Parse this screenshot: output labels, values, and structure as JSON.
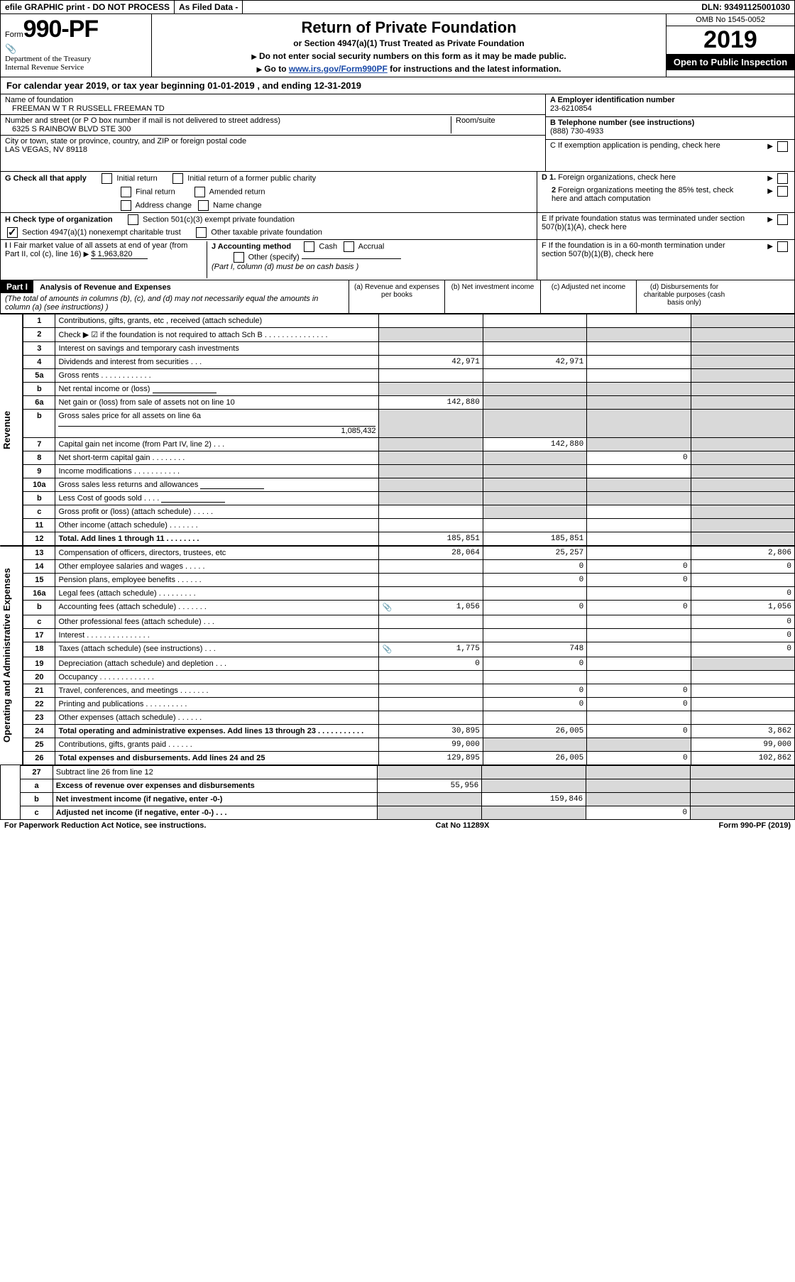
{
  "topbar": {
    "efile": "efile GRAPHIC print - DO NOT PROCESS",
    "asfiled": "As Filed Data -",
    "dln_label": "DLN:",
    "dln": "93491125001030"
  },
  "header": {
    "form_label": "Form",
    "form_no": "990-PF",
    "dept": "Department of the Treasury",
    "irs": "Internal Revenue Service",
    "title": "Return of Private Foundation",
    "subtitle": "or Section 4947(a)(1) Trust Treated as Private Foundation",
    "instr1": "Do not enter social security numbers on this form as it may be made public.",
    "instr2_prefix": "Go to ",
    "instr2_link": "www.irs.gov/Form990PF",
    "instr2_suffix": " for instructions and the latest information.",
    "omb": "OMB No 1545-0052",
    "year": "2019",
    "open": "Open to Public Inspection"
  },
  "cal": "For calendar year 2019, or tax year beginning 01-01-2019              , and ending 12-31-2019",
  "left": {
    "name_lbl": "Name of foundation",
    "name": "FREEMAN W T R RUSSELL FREEMAN TD",
    "addr_lbl": "Number and street (or P O  box number if mail is not delivered to street address)",
    "room_lbl": "Room/suite",
    "addr": "6325 S RAINBOW BLVD STE 300",
    "city_lbl": "City or town, state or province, country, and ZIP or foreign postal code",
    "city": "LAS VEGAS, NV  89118",
    "g_label": "G Check all that apply",
    "g_opts": [
      "Initial return",
      "Initial return of a former public charity",
      "Final return",
      "Amended return",
      "Address change",
      "Name change"
    ],
    "h_label": "H Check type of organization",
    "h_opts": [
      "Section 501(c)(3) exempt private foundation",
      "Section 4947(a)(1) nonexempt charitable trust",
      "Other taxable private foundation"
    ],
    "i_label": "I Fair market value of all assets at end of year (from Part II, col  (c), line 16) ",
    "i_value": "$  1,963,820",
    "j_label": "J Accounting method",
    "j_opts": [
      "Cash",
      "Accrual",
      "Other (specify)"
    ],
    "j_note": "(Part I, column (d) must be on cash basis )"
  },
  "right": {
    "a_lbl": "A Employer identification number",
    "a_val": "23-6210854",
    "b_lbl": "B Telephone number (see instructions)",
    "b_val": "(888) 730-4933",
    "c_lbl": "C If exemption application is pending, check here",
    "d1": "D 1. Foreign organizations, check here",
    "d2": "2  Foreign organizations meeting the 85% test, check here and attach computation",
    "e": "E  If private foundation status was terminated under section 507(b)(1)(A), check here",
    "f": "F  If the foundation is in a 60-month termination under section 507(b)(1)(B), check here"
  },
  "part1": {
    "label": "Part I",
    "title": "Analysis of Revenue and Expenses",
    "title_note": "(The total of amounts in columns (b), (c), and (d) may not necessarily equal the amounts in column (a) (see instructions) )",
    "cols": {
      "a": "(a)   Revenue and expenses per books",
      "b": "(b)   Net investment income",
      "c": "(c)   Adjusted net income",
      "d": "(d)   Disbursements for charitable purposes (cash basis only)"
    }
  },
  "rev_label": "Revenue",
  "exp_label": "Operating and Administrative Expenses",
  "rows": [
    {
      "n": "1",
      "t": "Contributions, gifts, grants, etc , received (attach schedule)",
      "a": "",
      "b": "",
      "c": "",
      "d": "",
      "shade_d": true
    },
    {
      "n": "2",
      "t": "Check ▶ ☑ if the foundation is not required to attach Sch  B        .  .  .  .  .  .  .  .  .  .  .  .  .  .  .",
      "a": "",
      "b": "",
      "c": "",
      "d": "",
      "shade_a": true,
      "shade_b": true,
      "shade_c": true,
      "shade_d": true
    },
    {
      "n": "3",
      "t": "Interest on savings and temporary cash investments",
      "a": "",
      "b": "",
      "c": "",
      "d": "",
      "shade_d": true
    },
    {
      "n": "4",
      "t": "Dividends and interest from securities     .   .   .",
      "a": "42,971",
      "b": "42,971",
      "c": "",
      "d": "",
      "shade_d": true
    },
    {
      "n": "5a",
      "t": "Gross rents      .   .   .   .   .   .   .   .   .   .   .   .",
      "a": "",
      "b": "",
      "c": "",
      "d": "",
      "shade_d": true
    },
    {
      "n": "b",
      "t": "Net rental income or (loss)",
      "a": "",
      "b": "",
      "c": "",
      "d": "",
      "shade_a": true,
      "shade_b": true,
      "shade_c": true,
      "shade_d": true,
      "inline_blank": true
    },
    {
      "n": "6a",
      "t": "Net gain or (loss) from sale of assets not on line 10",
      "a": "142,880",
      "b": "",
      "c": "",
      "d": "",
      "shade_b": true,
      "shade_c": true,
      "shade_d": true
    },
    {
      "n": "b",
      "t": "Gross sales price for all assets on line 6a",
      "a": "",
      "b": "",
      "c": "",
      "d": "",
      "shade_a": true,
      "shade_b": true,
      "shade_c": true,
      "shade_d": true,
      "trail": "1,085,432"
    },
    {
      "n": "7",
      "t": "Capital gain net income (from Part IV, line 2)    .   .   .",
      "a": "",
      "b": "142,880",
      "c": "",
      "d": "",
      "shade_a": true,
      "shade_c": true,
      "shade_d": true
    },
    {
      "n": "8",
      "t": "Net short-term capital gain   .   .   .   .   .   .   .   .",
      "a": "",
      "b": "",
      "c": "0",
      "d": "",
      "shade_a": true,
      "shade_b": true,
      "shade_d": true
    },
    {
      "n": "9",
      "t": "Income modifications  .   .   .   .   .   .   .   .   .   .   .",
      "a": "",
      "b": "",
      "c": "",
      "d": "",
      "shade_a": true,
      "shade_b": true,
      "shade_d": true
    },
    {
      "n": "10a",
      "t": "Gross sales less returns and allowances",
      "a": "",
      "b": "",
      "c": "",
      "d": "",
      "shade_a": true,
      "shade_b": true,
      "shade_c": true,
      "shade_d": true,
      "inline_blank": true
    },
    {
      "n": "b",
      "t": "Less  Cost of goods sold     .   .   .   .",
      "a": "",
      "b": "",
      "c": "",
      "d": "",
      "shade_a": true,
      "shade_b": true,
      "shade_c": true,
      "shade_d": true,
      "inline_blank": true
    },
    {
      "n": "c",
      "t": "Gross profit or (loss) (attach schedule)    .   .   .   .   .",
      "a": "",
      "b": "",
      "c": "",
      "d": "",
      "shade_b": true,
      "shade_d": true
    },
    {
      "n": "11",
      "t": "Other income (attach schedule)     .   .   .   .   .   .   .",
      "a": "",
      "b": "",
      "c": "",
      "d": "",
      "shade_d": true
    },
    {
      "n": "12",
      "t": "Total. Add lines 1 through 11    .   .   .   .   .   .   .   .",
      "a": "185,851",
      "b": "185,851",
      "c": "",
      "d": "",
      "bold": true,
      "shade_d": true
    }
  ],
  "exp_rows": [
    {
      "n": "13",
      "t": "Compensation of officers, directors, trustees, etc",
      "a": "28,064",
      "b": "25,257",
      "c": "",
      "d": "2,806"
    },
    {
      "n": "14",
      "t": "Other employee salaries and wages     .   .   .   .   .",
      "a": "",
      "b": "0",
      "c": "0",
      "d": "0"
    },
    {
      "n": "15",
      "t": "Pension plans, employee benefits    .   .   .   .   .   .",
      "a": "",
      "b": "0",
      "c": "0",
      "d": ""
    },
    {
      "n": "16a",
      "t": "Legal fees (attach schedule)  .   .   .   .   .   .   .   .   .",
      "a": "",
      "b": "",
      "c": "",
      "d": "0"
    },
    {
      "n": "b",
      "t": "Accounting fees (attach schedule)  .   .   .   .   .   .   .",
      "a": "1,056",
      "b": "0",
      "c": "0",
      "d": "1,056",
      "icon": true
    },
    {
      "n": "c",
      "t": "Other professional fees (attach schedule)    .   .   .",
      "a": "",
      "b": "",
      "c": "",
      "d": "0"
    },
    {
      "n": "17",
      "t": "Interest   .   .   .   .   .   .   .   .   .   .   .   .   .   .   .",
      "a": "",
      "b": "",
      "c": "",
      "d": "0"
    },
    {
      "n": "18",
      "t": "Taxes (attach schedule) (see instructions)    .   .   .",
      "a": "1,775",
      "b": "748",
      "c": "",
      "d": "0",
      "icon": true
    },
    {
      "n": "19",
      "t": "Depreciation (attach schedule) and depletion    .   .   .",
      "a": "0",
      "b": "0",
      "c": "",
      "d": "",
      "shade_d": true
    },
    {
      "n": "20",
      "t": "Occupancy    .   .   .   .   .   .   .   .   .   .   .   .   .",
      "a": "",
      "b": "",
      "c": "",
      "d": ""
    },
    {
      "n": "21",
      "t": "Travel, conferences, and meetings  .   .   .   .   .   .   .",
      "a": "",
      "b": "0",
      "c": "0",
      "d": ""
    },
    {
      "n": "22",
      "t": "Printing and publications  .   .   .   .   .   .   .   .   .   .",
      "a": "",
      "b": "0",
      "c": "0",
      "d": ""
    },
    {
      "n": "23",
      "t": "Other expenses (attach schedule)   .   .   .   .   .   .",
      "a": "",
      "b": "",
      "c": "",
      "d": ""
    },
    {
      "n": "24",
      "t": "Total operating and administrative expenses. Add lines 13 through 23    .   .   .   .   .   .   .   .   .   .   .",
      "a": "30,895",
      "b": "26,005",
      "c": "0",
      "d": "3,862",
      "bold": true
    },
    {
      "n": "25",
      "t": "Contributions, gifts, grants paid     .   .   .   .   .   .",
      "a": "99,000",
      "b": "",
      "c": "",
      "d": "99,000",
      "shade_b": true,
      "shade_c": true
    },
    {
      "n": "26",
      "t": "Total expenses and disbursements. Add lines 24 and 25",
      "a": "129,895",
      "b": "26,005",
      "c": "0",
      "d": "102,862",
      "bold": true
    }
  ],
  "tail_rows": [
    {
      "n": "27",
      "t": "Subtract line 26 from line 12",
      "a": "",
      "b": "",
      "c": "",
      "d": "",
      "shade_a": true,
      "shade_b": true,
      "shade_c": true,
      "shade_d": true
    },
    {
      "n": "a",
      "t": "Excess of revenue over expenses and disbursements",
      "a": "55,956",
      "b": "",
      "c": "",
      "d": "",
      "bold": true,
      "shade_b": true,
      "shade_c": true,
      "shade_d": true
    },
    {
      "n": "b",
      "t": "Net investment income (if negative, enter -0-)",
      "a": "",
      "b": "159,846",
      "c": "",
      "d": "",
      "bold": true,
      "shade_a": true,
      "shade_c": true,
      "shade_d": true
    },
    {
      "n": "c",
      "t": "Adjusted net income (if negative, enter -0-)   .   .   .",
      "a": "",
      "b": "",
      "c": "0",
      "d": "",
      "bold": true,
      "shade_a": true,
      "shade_b": true,
      "shade_d": true
    }
  ],
  "footer": {
    "left": "For Paperwork Reduction Act Notice, see instructions.",
    "mid": "Cat  No  11289X",
    "right": "Form 990-PF (2019)"
  }
}
